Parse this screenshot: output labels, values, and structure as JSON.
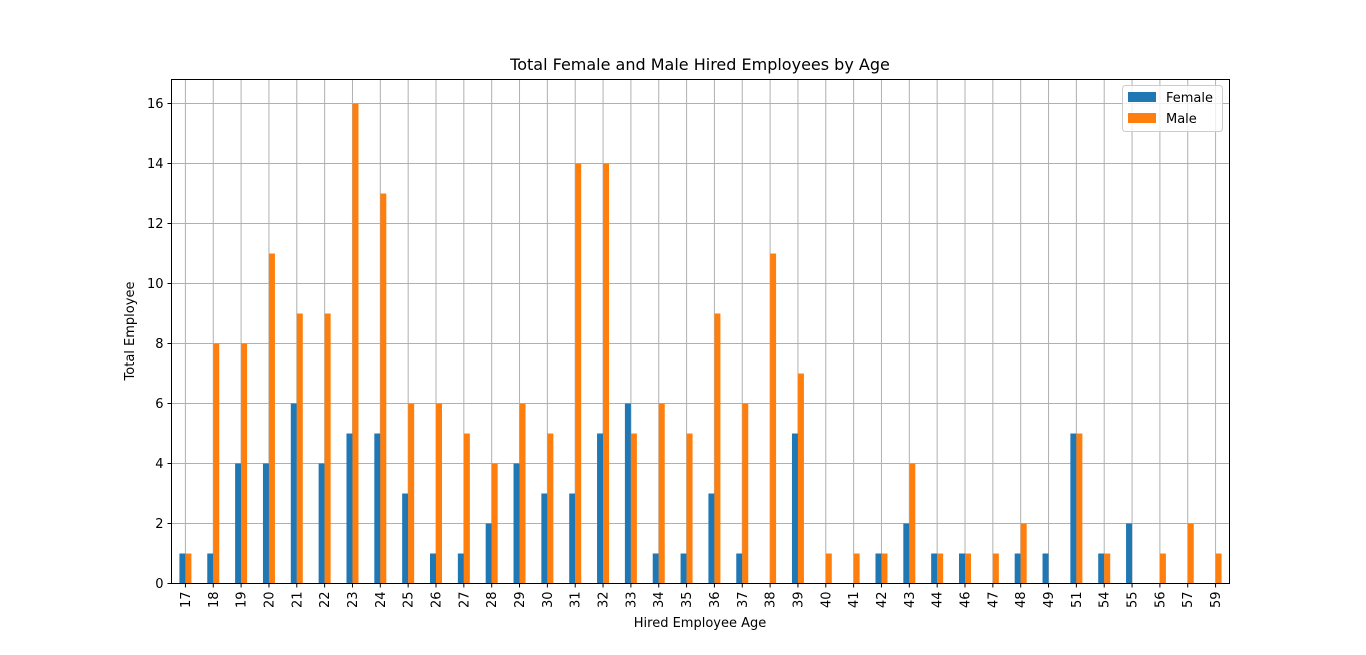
{
  "chart_data": {
    "type": "bar",
    "title": "Total Female and Male Hired Employees by Age",
    "xlabel": "Hired Employee Age",
    "ylabel": "Total Employee",
    "categories": [
      "17",
      "18",
      "19",
      "20",
      "21",
      "22",
      "23",
      "24",
      "25",
      "26",
      "27",
      "28",
      "29",
      "30",
      "31",
      "32",
      "33",
      "34",
      "35",
      "36",
      "37",
      "38",
      "39",
      "40",
      "41",
      "42",
      "43",
      "44",
      "46",
      "47",
      "48",
      "49",
      "51",
      "54",
      "55",
      "56",
      "57",
      "59"
    ],
    "series": [
      {
        "name": "Female",
        "color": "#1f77b4",
        "values": [
          1,
          1,
          4,
          4,
          6,
          4,
          5,
          5,
          3,
          1,
          1,
          2,
          4,
          3,
          3,
          5,
          6,
          1,
          1,
          3,
          1,
          0,
          5,
          0,
          0,
          1,
          2,
          1,
          1,
          0,
          1,
          1,
          5,
          1,
          2,
          0,
          0,
          0
        ]
      },
      {
        "name": "Male",
        "color": "#ff7f0e",
        "values": [
          1,
          8,
          8,
          11,
          9,
          9,
          16,
          13,
          6,
          6,
          5,
          4,
          6,
          5,
          14,
          14,
          5,
          6,
          5,
          9,
          6,
          11,
          7,
          1,
          1,
          1,
          4,
          1,
          1,
          1,
          2,
          0,
          5,
          1,
          0,
          1,
          2,
          1
        ]
      }
    ],
    "ylim": [
      0,
      16.8
    ],
    "yticks": [
      "0",
      "2",
      "4",
      "6",
      "8",
      "10",
      "12",
      "14",
      "16"
    ],
    "grid": true,
    "legend": "top-right"
  }
}
